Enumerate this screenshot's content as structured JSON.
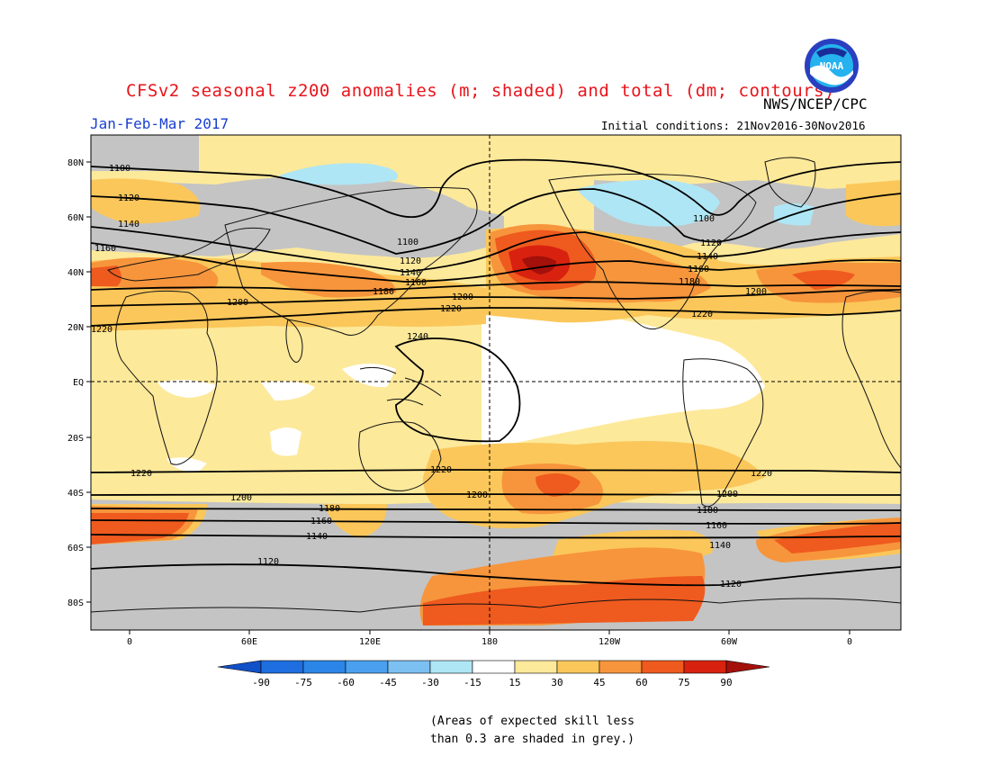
{
  "header": {
    "title": "CFSv2 seasonal z200 anomalies (m; shaded) and total (dm; contours)",
    "agency": "NWS/NCEP/CPC",
    "period": "Jan-Feb-Mar 2017",
    "initial_conditions": "Initial conditions: 21Nov2016-30Nov2016",
    "logo_text": "NOAA"
  },
  "map": {
    "lat_labels": [
      "80N",
      "60N",
      "40N",
      "20N",
      "EQ",
      "20S",
      "40S",
      "60S",
      "80S"
    ],
    "lon_labels": [
      "0",
      "60E",
      "120E",
      "180",
      "120W",
      "60W",
      "0"
    ],
    "contour_labels": [
      "1100",
      "1120",
      "1140",
      "1160",
      "1180",
      "1200",
      "1220",
      "1240"
    ],
    "reference_lines": [
      "equator",
      "dateline"
    ]
  },
  "colorbar": {
    "values": [
      "-90",
      "-75",
      "-60",
      "-45",
      "-30",
      "-15",
      "15",
      "30",
      "45",
      "60",
      "75",
      "90"
    ],
    "colors": [
      "#1e6ee0",
      "#2b86e8",
      "#4aa0ee",
      "#7cc0f2",
      "#aee6f5",
      "#ffffff",
      "#fde99a",
      "#fbc75a",
      "#f7953c",
      "#ef5a1e",
      "#d8220f"
    ],
    "low_end_color": "#1250c8",
    "high_end_color": "#a4100a"
  },
  "legend_note": {
    "line1": "(Areas of expected skill less",
    "line2": "than 0.3 are shaded in grey.)"
  },
  "colors": {
    "title": "#e8141b",
    "period": "#1a3fd1",
    "grey_low_skill": "#c4c4c4"
  }
}
